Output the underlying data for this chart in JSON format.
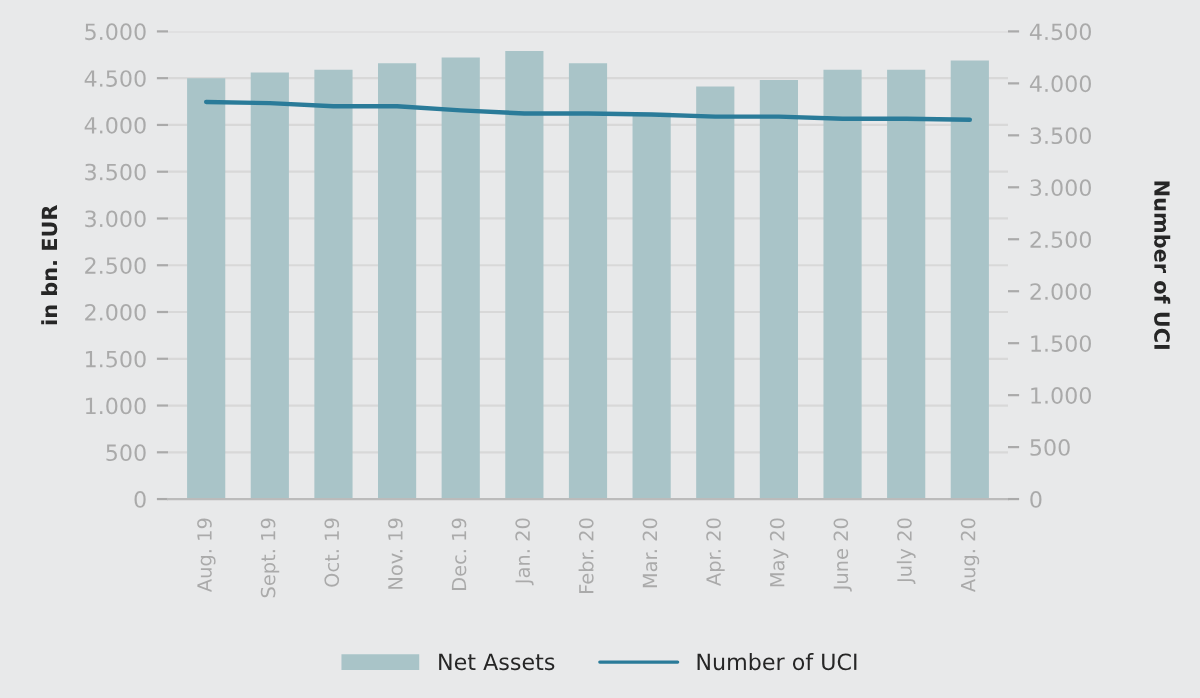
{
  "chart_data": {
    "type": "bar",
    "categories": [
      "Aug. 19",
      "Sept. 19",
      "Oct. 19",
      "Nov. 19",
      "Dec. 19",
      "Jan. 20",
      "Febr. 20",
      "Mar. 20",
      "Apr. 20",
      "May 20",
      "June 20",
      "July 20",
      "Aug. 20"
    ],
    "series": [
      {
        "name": "Net Assets",
        "color": "#a9c4c8",
        "values": [
          4500,
          4560,
          4590,
          4660,
          4720,
          4790,
          4660,
          4130,
          4410,
          4480,
          4590,
          4590,
          4690
        ]
      },
      {
        "name": "Number of UCI",
        "type": "line",
        "axis": "y2",
        "color": "#2a7b99",
        "values": [
          3820,
          3810,
          3780,
          3780,
          3740,
          3710,
          3710,
          3700,
          3680,
          3680,
          3660,
          3660,
          3650
        ]
      }
    ],
    "ylabel": "in bn. EUR",
    "y2label": "Number of UCI",
    "ylim": [
      0,
      5000
    ],
    "yticks": [
      0,
      500,
      {
        "value": 1000,
        "label": "1.000"
      },
      {
        "value": 1500,
        "label": "1.500"
      },
      {
        "value": 2000,
        "label": "2.000"
      },
      {
        "value": 2500,
        "label": "2.500"
      },
      {
        "value": 3000,
        "label": "3.000"
      },
      {
        "value": 3500,
        "label": "3.500"
      },
      {
        "value": 4000,
        "label": "4.000"
      },
      {
        "value": 4500,
        "label": "4.500"
      },
      {
        "value": 5000,
        "label": "5.000"
      }
    ],
    "y2lim": [
      0,
      4500
    ],
    "y2ticks": [
      0,
      500,
      {
        "value": 1000,
        "label": "1.000"
      },
      {
        "value": 1500,
        "label": "1.500"
      },
      {
        "value": 2000,
        "label": "2.000"
      },
      {
        "value": 2500,
        "label": "2.500"
      },
      {
        "value": 3000,
        "label": "3.000"
      },
      {
        "value": 3500,
        "label": "3.500"
      },
      {
        "value": 4000,
        "label": "4.000"
      },
      {
        "value": 4500,
        "label": "4.500"
      }
    ],
    "grid": "y",
    "legend": "bottom",
    "marker": "none"
  }
}
